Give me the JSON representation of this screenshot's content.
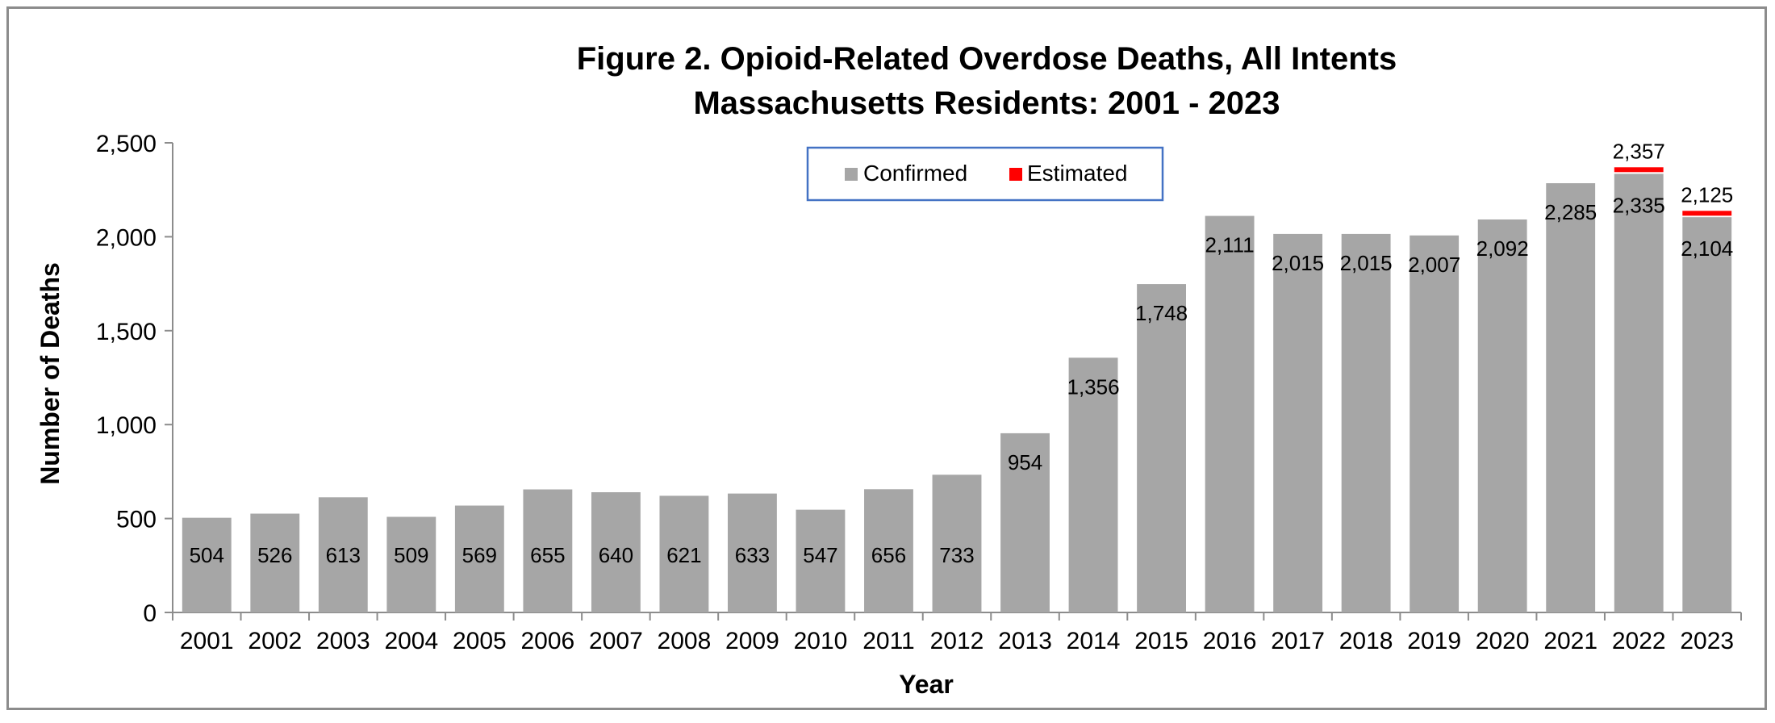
{
  "chart_data": {
    "type": "bar",
    "title": "Figure 2. Opioid-Related Overdose Deaths, All Intents",
    "subtitle": "Massachusetts Residents: 2001 - 2023",
    "xlabel": "Year",
    "ylabel": "Number of Deaths",
    "ylim": [
      0,
      2500
    ],
    "yticks": [
      0,
      500,
      1000,
      1500,
      2000,
      2500
    ],
    "ytick_labels": [
      "0",
      "500",
      "1,000",
      "1,500",
      "2,000",
      "2,500"
    ],
    "grid": false,
    "legend_position": "top-center",
    "categories": [
      "2001",
      "2002",
      "2003",
      "2004",
      "2005",
      "2006",
      "2007",
      "2008",
      "2009",
      "2010",
      "2011",
      "2012",
      "2013",
      "2014",
      "2015",
      "2016",
      "2017",
      "2018",
      "2019",
      "2020",
      "2021",
      "2022",
      "2023"
    ],
    "series": [
      {
        "name": "Confirmed",
        "color": "#a6a6a6",
        "values": [
          504,
          526,
          613,
          509,
          569,
          655,
          640,
          621,
          633,
          547,
          656,
          733,
          954,
          1356,
          1748,
          2111,
          2015,
          2015,
          2007,
          2092,
          2285,
          2335,
          2104
        ],
        "labels": [
          "504",
          "526",
          "613",
          "509",
          "569",
          "655",
          "640",
          "621",
          "633",
          "547",
          "656",
          "733",
          "954",
          "1,356",
          "1,748",
          "2,111",
          "2,015",
          "2,015",
          "2,007",
          "2,092",
          "2,285",
          "2,335",
          "2,104"
        ]
      },
      {
        "name": "Estimated",
        "color": "#ff0000",
        "values": [
          null,
          null,
          null,
          null,
          null,
          null,
          null,
          null,
          null,
          null,
          null,
          null,
          null,
          null,
          null,
          null,
          null,
          null,
          null,
          null,
          null,
          22,
          21
        ],
        "totals": [
          null,
          null,
          null,
          null,
          null,
          null,
          null,
          null,
          null,
          null,
          null,
          null,
          null,
          null,
          null,
          null,
          null,
          null,
          null,
          null,
          null,
          2357,
          2125
        ],
        "total_labels": [
          null,
          null,
          null,
          null,
          null,
          null,
          null,
          null,
          null,
          null,
          null,
          null,
          null,
          null,
          null,
          null,
          null,
          null,
          null,
          null,
          null,
          "2,357",
          "2,125"
        ]
      }
    ]
  }
}
